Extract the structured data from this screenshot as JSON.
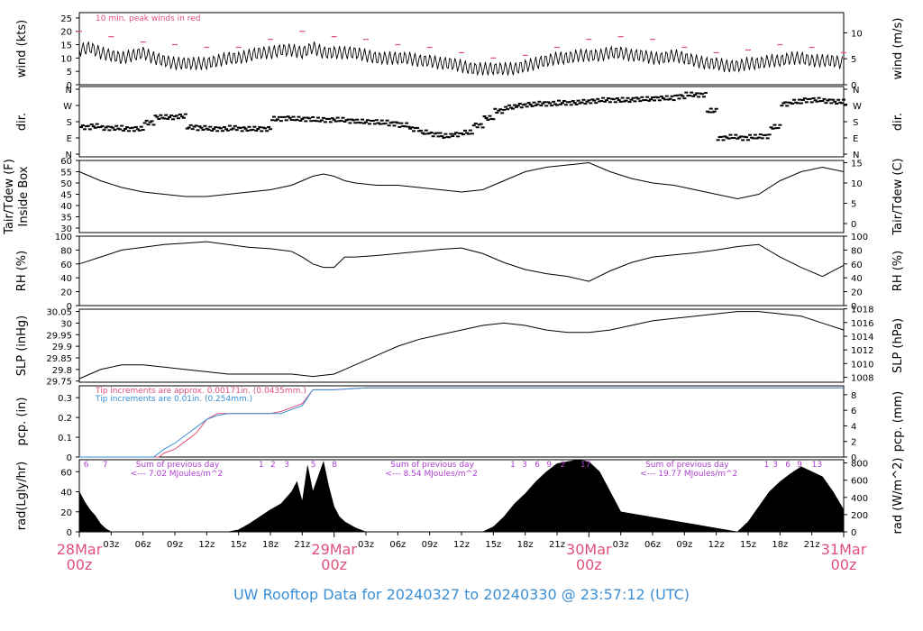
{
  "footer_title": "UW Rooftop Data for 20240327  to  20240330 @ 23:57:12  (UTC)",
  "colors": {
    "peak": "#e0507a",
    "blue": "#3a8fd6",
    "purple": "#b040d0",
    "day": "#e0507a",
    "line": "#000000"
  },
  "time_axis": {
    "hour_ticks": [
      "03z",
      "06z",
      "09z",
      "12z",
      "15z",
      "18z",
      "21z",
      "03z",
      "06z",
      "09z",
      "12z",
      "15z",
      "18z",
      "21z",
      "03z",
      "06z",
      "09z",
      "12z",
      "15z",
      "18z",
      "21z"
    ],
    "hour_positions_h": [
      3,
      6,
      9,
      12,
      15,
      18,
      21,
      27,
      30,
      33,
      36,
      39,
      42,
      45,
      51,
      54,
      57,
      60,
      63,
      66,
      69
    ],
    "day_labels": [
      {
        "date": "28Mar",
        "hour": "00z",
        "h": 0
      },
      {
        "date": "29Mar",
        "hour": "00z",
        "h": 24
      },
      {
        "date": "30Mar",
        "hour": "00z",
        "h": 48
      },
      {
        "date": "31Mar",
        "hour": "00z",
        "h": 72
      }
    ]
  },
  "chart_data": [
    {
      "type": "line",
      "id": "wind",
      "ylabel_left": "wind (kts)",
      "ylabel_right": "wind (m/s)",
      "ylim": [
        0,
        27
      ],
      "left_ticks": [
        0,
        5,
        10,
        15,
        20,
        25
      ],
      "right_ticks": [
        0,
        5,
        10
      ],
      "right_factor": 0.5144,
      "annotation": "10 min. peak winds in red",
      "series": [
        {
          "x": [
            0,
            1,
            2,
            3,
            4,
            5,
            6,
            7,
            8,
            9,
            10,
            11,
            12,
            13,
            14,
            15,
            16,
            17,
            18,
            19,
            20,
            21,
            22,
            23,
            24,
            25,
            26,
            27,
            28,
            29,
            30,
            31,
            32,
            33,
            34,
            35,
            36,
            37,
            38,
            39,
            40,
            41,
            42,
            43,
            44,
            45,
            46,
            47,
            48,
            49,
            50,
            51,
            52,
            53,
            54,
            55,
            56,
            57,
            58,
            59,
            60,
            61,
            62,
            63,
            64,
            65,
            66,
            67,
            68,
            69,
            70,
            71,
            72
          ],
          "values": [
            13,
            14,
            12,
            11,
            10,
            11,
            12,
            10,
            9,
            8,
            8,
            8,
            8,
            9,
            10,
            10,
            11,
            12,
            12,
            13,
            13,
            12,
            14,
            12,
            12,
            12,
            12,
            11,
            10,
            10,
            10,
            10,
            9,
            9,
            8,
            8,
            7,
            6,
            6,
            6,
            6,
            6,
            7,
            8,
            9,
            10,
            10,
            11,
            11,
            11,
            12,
            12,
            11,
            11,
            10,
            10,
            11,
            10,
            9,
            8,
            8,
            7,
            7,
            8,
            8,
            9,
            9,
            10,
            10,
            9,
            9,
            9,
            8
          ]
        },
        {
          "x": [
            0,
            3,
            6,
            9,
            12,
            15,
            18,
            21,
            24,
            27,
            30,
            33,
            36,
            39,
            42,
            45,
            48,
            51,
            54,
            57,
            60,
            63,
            66,
            69,
            72
          ],
          "values": [
            20,
            18,
            16,
            15,
            14,
            14,
            17,
            20,
            18,
            17,
            15,
            14,
            12,
            10,
            11,
            14,
            17,
            18,
            17,
            14,
            12,
            13,
            15,
            14,
            12
          ]
        }
      ]
    },
    {
      "type": "scatter",
      "id": "dir",
      "ylabel_left": "dir.",
      "ylabel_right": "dir.",
      "y_categories": [
        "N",
        "E",
        "S",
        "W",
        "N"
      ],
      "x": [
        0,
        1,
        2,
        3,
        4,
        5,
        6,
        7,
        8,
        9,
        10,
        11,
        12,
        13,
        14,
        15,
        16,
        17,
        18,
        19,
        20,
        21,
        22,
        23,
        24,
        25,
        26,
        27,
        28,
        29,
        30,
        31,
        32,
        33,
        34,
        35,
        36,
        37,
        38,
        39,
        40,
        41,
        42,
        43,
        44,
        45,
        46,
        47,
        48,
        49,
        50,
        51,
        52,
        53,
        54,
        55,
        56,
        57,
        58,
        59,
        60,
        61,
        62,
        63,
        64,
        65,
        66,
        67,
        68,
        69,
        70,
        71,
        72
      ],
      "values": [
        150,
        155,
        145,
        145,
        140,
        140,
        175,
        205,
        205,
        210,
        150,
        145,
        140,
        140,
        145,
        140,
        140,
        140,
        195,
        200,
        195,
        195,
        190,
        190,
        190,
        185,
        180,
        180,
        175,
        170,
        160,
        140,
        120,
        110,
        100,
        110,
        120,
        160,
        200,
        240,
        260,
        270,
        275,
        280,
        280,
        285,
        285,
        290,
        295,
        300,
        300,
        300,
        305,
        305,
        310,
        310,
        320,
        330,
        330,
        240,
        90,
        95,
        90,
        95,
        100,
        150,
        280,
        290,
        300,
        300,
        295,
        290,
        285
      ]
    },
    {
      "type": "line",
      "id": "temp",
      "ylabel_left": "Tair/Tdew (F)\nInside Box",
      "ylabel_right": "Tair/Tdew (C)",
      "ylim": [
        28,
        60
      ],
      "left_ticks": [
        30,
        35,
        40,
        45,
        50,
        55,
        60
      ],
      "right_ticks": [
        0,
        5,
        10,
        15
      ],
      "series": [
        {
          "x": [
            0,
            2,
            4,
            6,
            8,
            10,
            12,
            14,
            16,
            18,
            20,
            21,
            22,
            23,
            24,
            25,
            26,
            28,
            30,
            32,
            34,
            36,
            38,
            40,
            42,
            44,
            46,
            48,
            50,
            52,
            54,
            56,
            58,
            60,
            62,
            64,
            66,
            68,
            70,
            72
          ],
          "values": [
            55,
            51,
            48,
            46,
            45,
            44,
            44,
            45,
            46,
            47,
            49,
            51,
            53,
            54,
            53,
            51,
            50,
            49,
            49,
            48,
            47,
            46,
            47,
            51,
            55,
            57,
            58,
            59,
            55,
            52,
            50,
            49,
            47,
            45,
            43,
            45,
            51,
            55,
            57,
            55
          ]
        }
      ]
    },
    {
      "type": "line",
      "id": "rh",
      "ylabel_left": "RH (%)",
      "ylabel_right": "RH (%)",
      "ylim": [
        0,
        100
      ],
      "left_ticks": [
        0,
        20,
        40,
        60,
        80,
        100
      ],
      "right_ticks": [
        0,
        20,
        40,
        60,
        80,
        100
      ],
      "series": [
        {
          "x": [
            0,
            2,
            4,
            6,
            8,
            10,
            12,
            14,
            16,
            18,
            19,
            20,
            21,
            22,
            23,
            24,
            25,
            26,
            28,
            30,
            32,
            34,
            36,
            38,
            40,
            42,
            44,
            46,
            48,
            50,
            52,
            54,
            56,
            58,
            60,
            62,
            64,
            66,
            68,
            70,
            72
          ],
          "values": [
            60,
            70,
            80,
            84,
            88,
            90,
            92,
            88,
            84,
            82,
            80,
            78,
            70,
            60,
            55,
            55,
            70,
            70,
            72,
            75,
            78,
            81,
            83,
            75,
            62,
            52,
            46,
            42,
            35,
            50,
            62,
            70,
            73,
            76,
            80,
            85,
            88,
            70,
            55,
            42,
            58
          ]
        }
      ]
    },
    {
      "type": "line",
      "id": "slp",
      "ylabel_left": "SLP (inHg)",
      "ylabel_right": "SLP (hPa)",
      "ylim": [
        29.745,
        30.06
      ],
      "left_ticks": [
        29.75,
        29.8,
        29.85,
        29.9,
        29.95,
        30.0,
        30.05
      ],
      "right_ticks": [
        1008,
        1010,
        1012,
        1014,
        1016,
        1018
      ],
      "series": [
        {
          "x": [
            0,
            2,
            4,
            6,
            8,
            10,
            12,
            14,
            16,
            18,
            20,
            22,
            24,
            26,
            28,
            30,
            32,
            34,
            36,
            38,
            40,
            42,
            44,
            46,
            48,
            50,
            52,
            54,
            56,
            58,
            60,
            62,
            64,
            66,
            68,
            70,
            72
          ],
          "values": [
            29.76,
            29.8,
            29.82,
            29.82,
            29.81,
            29.8,
            29.79,
            29.78,
            29.78,
            29.78,
            29.78,
            29.77,
            29.78,
            29.82,
            29.86,
            29.9,
            29.93,
            29.95,
            29.97,
            29.99,
            30.0,
            29.99,
            29.97,
            29.96,
            29.96,
            29.97,
            29.99,
            30.01,
            30.02,
            30.03,
            30.04,
            30.05,
            30.05,
            30.04,
            30.03,
            30.0,
            29.97
          ]
        }
      ]
    },
    {
      "type": "line",
      "id": "pcp",
      "ylabel_left": "pcp. (in)",
      "ylabel_right": "pcp. (mm)",
      "ylim": [
        0,
        0.36
      ],
      "left_ticks": [
        0.0,
        0.1,
        0.2,
        0.3
      ],
      "right_ticks": [
        0,
        2,
        4,
        6,
        8
      ],
      "annotations": [
        {
          "text": "Tip increments are approx. 0.00171in. (0.0435mm.)",
          "color": "peak"
        },
        {
          "text": "Tip increments are 0.01in. (0.254mm.)",
          "color": "blue"
        }
      ],
      "series": [
        {
          "x": [
            0,
            7.5,
            8,
            9,
            10,
            11,
            12,
            13,
            14,
            15,
            16,
            17,
            18,
            19,
            20,
            21,
            22,
            24,
            27,
            30,
            40,
            50,
            60,
            70,
            72
          ],
          "values": [
            0,
            0,
            0.02,
            0.04,
            0.08,
            0.12,
            0.19,
            0.22,
            0.22,
            0.22,
            0.22,
            0.22,
            0.22,
            0.23,
            0.25,
            0.27,
            0.34,
            0.34,
            0.35,
            0.35,
            0.35,
            0.35,
            0.35,
            0.35,
            0.35
          ]
        },
        {
          "x": [
            0,
            7,
            7.5,
            8,
            9,
            10,
            11,
            12,
            13,
            14,
            16,
            18,
            19,
            20,
            21,
            22,
            23,
            24,
            27,
            30,
            40,
            50,
            60,
            70,
            72
          ],
          "values": [
            0,
            0,
            0.02,
            0.04,
            0.07,
            0.11,
            0.15,
            0.19,
            0.21,
            0.22,
            0.22,
            0.22,
            0.22,
            0.24,
            0.26,
            0.34,
            0.34,
            0.34,
            0.35,
            0.35,
            0.35,
            0.35,
            0.35,
            0.35,
            0.35
          ]
        }
      ]
    },
    {
      "type": "area",
      "id": "rad",
      "ylabel_left": "rad(Lgly/hr)",
      "ylabel_right": "rad (W/m^2)",
      "ylim": [
        0,
        72
      ],
      "left_ticks": [
        0,
        20,
        40,
        60
      ],
      "right_ticks": [
        0,
        200,
        400,
        600,
        800
      ],
      "right_factor": 11.63,
      "day_sums": [
        {
          "label": "Sum of previous day",
          "value": "<--- 7.02 MJoules/m^2",
          "h": 3.8
        },
        {
          "label": "Sum of previous day",
          "value": "<--- 8.54 MJoules/m^2",
          "h": 27.8
        },
        {
          "label": "Sum of previous day",
          "value": "<--- 19.77 MJoules/m^2",
          "h": 51.8
        }
      ],
      "hour_marks": [
        {
          "text": "6",
          "h": 0.4
        },
        {
          "text": "7",
          "h": 2.2
        },
        {
          "text": "1",
          "h": 16.9
        },
        {
          "text": "2",
          "h": 18
        },
        {
          "text": "3",
          "h": 19.3
        },
        {
          "text": "5",
          "h": 21.8
        },
        {
          "text": "8",
          "h": 23.8
        },
        {
          "text": "1",
          "h": 40.6
        },
        {
          "text": "3",
          "h": 41.7
        },
        {
          "text": "6",
          "h": 42.9
        },
        {
          "text": "9",
          "h": 44
        },
        {
          "text": "2",
          "h": 45.3
        },
        {
          "text": "17",
          "h": 47.2
        },
        {
          "text": "1",
          "h": 64.5
        },
        {
          "text": "3",
          "h": 65.3
        },
        {
          "text": "6",
          "h": 66.5
        },
        {
          "text": "9",
          "h": 67.6
        },
        {
          "text": "13",
          "h": 69
        }
      ],
      "series": [
        {
          "x": [
            0,
            0.5,
            1,
            1.5,
            2,
            2.5,
            3,
            14,
            15,
            16,
            17,
            18,
            19,
            20,
            20.5,
            21,
            21.5,
            22,
            22.5,
            23,
            23.5,
            24,
            24.5,
            25,
            26,
            27,
            38,
            39,
            40,
            41,
            42,
            43,
            44,
            45,
            46,
            47,
            48,
            49,
            50,
            51,
            62,
            63,
            64,
            65,
            66,
            67,
            68,
            69,
            70,
            71,
            72
          ],
          "values": [
            40,
            30,
            22,
            16,
            8,
            3,
            0,
            0,
            2,
            8,
            15,
            22,
            28,
            40,
            50,
            30,
            66,
            40,
            55,
            70,
            45,
            25,
            15,
            10,
            4,
            0,
            0,
            5,
            15,
            28,
            38,
            50,
            60,
            68,
            70,
            72,
            70,
            60,
            40,
            20,
            0,
            10,
            25,
            40,
            50,
            58,
            65,
            60,
            55,
            40,
            22
          ]
        }
      ]
    }
  ]
}
